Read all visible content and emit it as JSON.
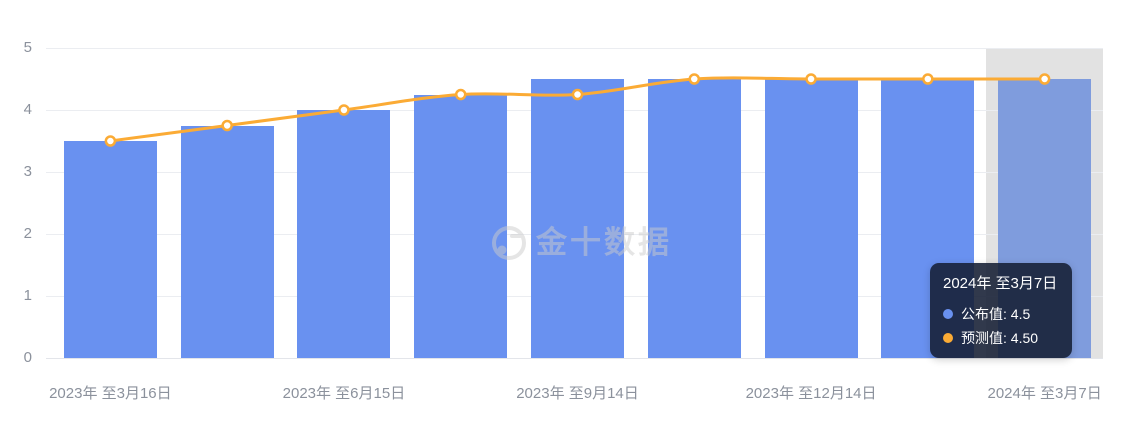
{
  "watermark": {
    "text": "金十数据"
  },
  "tooltip": {
    "title": "2024年 至3月7日",
    "rows": [
      {
        "label": "公布值",
        "value": "4.5",
        "color": "#6991f0"
      },
      {
        "label": "预测值",
        "value": "4.50",
        "color": "#fbab35"
      }
    ]
  },
  "chart_data": {
    "type": "bar+line",
    "categories": [
      "2023年 至3月16日",
      "",
      "2023年 至6月15日",
      "",
      "2023年 至9月14日",
      "",
      "2023年 至12月14日",
      "",
      "2024年 至3月7日"
    ],
    "x_tick_labels": [
      "2023年 至3月16日",
      "2023年 至6月15日",
      "2023年 至9月14日",
      "2023年 至12月14日",
      "2024年 至3月7日"
    ],
    "x_tick_indices": [
      0,
      2,
      4,
      6,
      8
    ],
    "series": [
      {
        "name": "公布值",
        "type": "bar",
        "color": "#6991f0",
        "values": [
          3.5,
          3.75,
          4.0,
          4.25,
          4.5,
          4.5,
          4.5,
          4.5,
          4.5
        ]
      },
      {
        "name": "预测值",
        "type": "line",
        "color": "#fbab35",
        "marker_fill": "#ffffff",
        "values": [
          3.5,
          3.75,
          4.0,
          4.25,
          4.25,
          4.5,
          4.5,
          4.5,
          4.5
        ]
      }
    ],
    "ylim": [
      0,
      5
    ],
    "y_ticks": [
      0,
      1,
      2,
      3,
      4,
      5
    ],
    "grid": true,
    "legend_position": "none",
    "highlight": {
      "index": 8,
      "band_color": "#e2e2e2",
      "bar_color": "#7f9cdd"
    },
    "colors": {
      "grid_line": "#ebedf1",
      "axis_line": "#e3e5ea",
      "axis_label": "#8b919c",
      "background": "#ffffff"
    }
  }
}
